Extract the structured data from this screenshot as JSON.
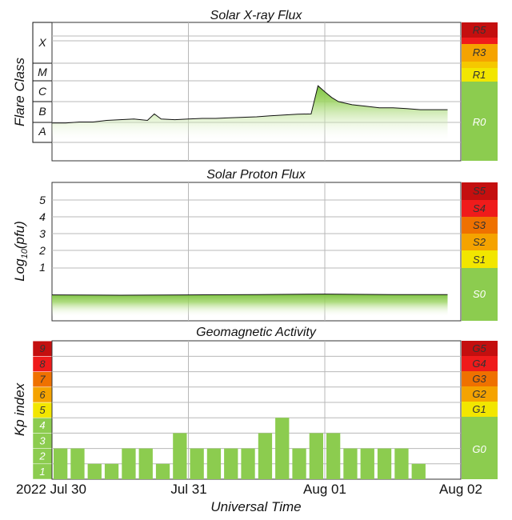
{
  "colors": {
    "green": "#8ccc4f",
    "yellow": "#f2e600",
    "orange": "#f5a300",
    "dark_orange": "#ef7100",
    "red": "#ef1b1b",
    "dark_red": "#c40f0f",
    "grid": "#b8b8b8"
  },
  "x_axis": {
    "label": "Universal Time",
    "ticks": [
      "2022 Jul 30",
      "Jul 31",
      "Aug 01",
      "Aug 02"
    ],
    "range_days": [
      0,
      3
    ]
  },
  "chart_data": [
    {
      "type": "area",
      "title": "Solar X-ray Flux",
      "ylabel": "Flare Class",
      "y_levels": [
        "A",
        "B",
        "C",
        "M",
        "X"
      ],
      "scale_labels": [
        "R5",
        "R3",
        "R1",
        "R0"
      ],
      "yscale": "log (flare class)",
      "x": [
        0,
        0.1,
        0.2,
        0.3,
        0.4,
        0.5,
        0.6,
        0.7,
        0.75,
        0.8,
        0.9,
        1.0,
        1.1,
        1.2,
        1.3,
        1.4,
        1.5,
        1.6,
        1.7,
        1.8,
        1.9,
        1.95,
        2.0,
        2.05,
        2.1,
        2.2,
        2.3,
        2.4,
        2.5,
        2.6,
        2.7,
        2.8,
        2.9
      ],
      "values_class": [
        "A9",
        "A9",
        "B1",
        "B1",
        "B1.2",
        "B1.3",
        "B1.4",
        "B1.2",
        "B2.5",
        "B1.4",
        "B1.3",
        "B1.4",
        "B1.5",
        "B1.5",
        "B1.6",
        "B1.7",
        "B1.8",
        "B2",
        "B2.2",
        "B2.4",
        "B2.5",
        "C6",
        "C3",
        "C1.6",
        "C1",
        "B7",
        "B6",
        "B5",
        "B5",
        "B4.5",
        "B4",
        "B4",
        "B4"
      ],
      "values_wm2": [
        9e-08,
        9e-08,
        1e-07,
        1e-07,
        1.2e-07,
        1.3e-07,
        1.4e-07,
        1.2e-07,
        2.5e-07,
        1.4e-07,
        1.3e-07,
        1.4e-07,
        1.5e-07,
        1.5e-07,
        1.6e-07,
        1.7e-07,
        1.8e-07,
        2e-07,
        2.2e-07,
        2.4e-07,
        2.5e-07,
        6e-06,
        3e-06,
        1.6e-06,
        1e-06,
        7e-07,
        6e-07,
        5e-07,
        5e-07,
        4.5e-07,
        4e-07,
        4e-07,
        4e-07
      ]
    },
    {
      "type": "area",
      "title": "Solar Proton Flux",
      "ylabel": "Log10(pfu)",
      "y_ticks": [
        "1",
        "2",
        "3",
        "4",
        "5"
      ],
      "scale_labels": [
        "S5",
        "S4",
        "S3",
        "S2",
        "S1",
        "S0"
      ],
      "x": [
        0,
        0.5,
        1.0,
        1.5,
        2.0,
        2.5,
        2.9
      ],
      "values": [
        -0.6,
        -0.62,
        -0.6,
        -0.58,
        -0.55,
        -0.58,
        -0.58
      ]
    },
    {
      "type": "bar",
      "title": "Geomagnetic Activity",
      "ylabel": "Kp index",
      "y_ticks": [
        "1",
        "2",
        "3",
        "4",
        "5",
        "6",
        "7",
        "8",
        "9"
      ],
      "scale_labels": [
        "G5",
        "G4",
        "G3",
        "G2",
        "G1",
        "G0"
      ],
      "ylim": [
        0,
        9
      ],
      "bin_hours": 3,
      "values": [
        2,
        2,
        1,
        1,
        2,
        2,
        1,
        3,
        2,
        2,
        2,
        2,
        3,
        4,
        2,
        3,
        3,
        2,
        2,
        2,
        2,
        1
      ]
    }
  ]
}
